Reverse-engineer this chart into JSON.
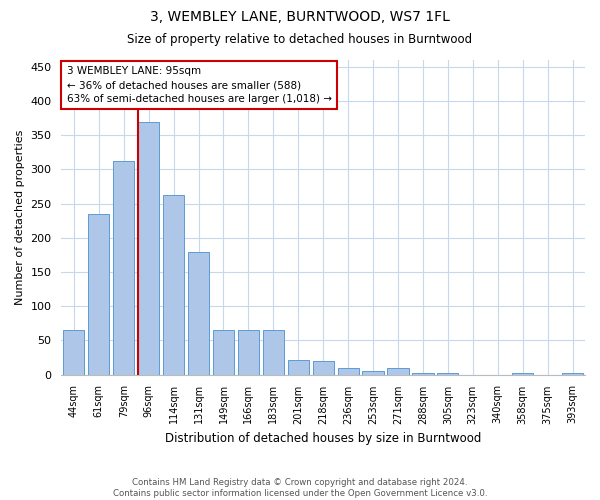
{
  "title": "3, WEMBLEY LANE, BURNTWOOD, WS7 1FL",
  "subtitle": "Size of property relative to detached houses in Burntwood",
  "xlabel": "Distribution of detached houses by size in Burntwood",
  "ylabel": "Number of detached properties",
  "footer": "Contains HM Land Registry data © Crown copyright and database right 2024.\nContains public sector information licensed under the Open Government Licence v3.0.",
  "categories": [
    "44sqm",
    "61sqm",
    "79sqm",
    "96sqm",
    "114sqm",
    "131sqm",
    "149sqm",
    "166sqm",
    "183sqm",
    "201sqm",
    "218sqm",
    "236sqm",
    "253sqm",
    "271sqm",
    "288sqm",
    "305sqm",
    "323sqm",
    "340sqm",
    "358sqm",
    "375sqm",
    "393sqm"
  ],
  "values": [
    65,
    235,
    312,
    370,
    263,
    179,
    65,
    65,
    65,
    22,
    20,
    10,
    5,
    10,
    3,
    2,
    0,
    0,
    3,
    0,
    3
  ],
  "bar_color": "#aec6e8",
  "bar_edge_color": "#5b9bd5",
  "vline_color": "#cc0000",
  "vline_position": 2.575,
  "annotation_text": "3 WEMBLEY LANE: 95sqm\n← 36% of detached houses are smaller (588)\n63% of semi-detached houses are larger (1,018) →",
  "annotation_box_color": "#ffffff",
  "annotation_box_edge": "#cc0000",
  "ylim": [
    0,
    460
  ],
  "yticks": [
    0,
    50,
    100,
    150,
    200,
    250,
    300,
    350,
    400,
    450
  ],
  "background_color": "#ffffff",
  "grid_color": "#c8d8ec"
}
